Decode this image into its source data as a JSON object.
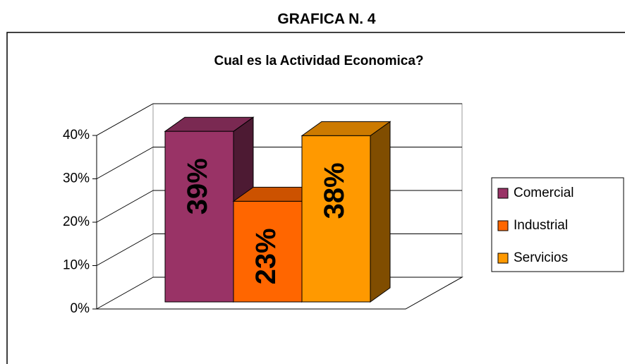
{
  "heading": "GRAFICA N. 4",
  "chart_data": {
    "type": "bar3d",
    "title": "Cual es la Actividad Economica?",
    "series": [
      {
        "name": "Comercial",
        "color": "#993366",
        "values": [
          39
        ],
        "value_labels": [
          "39%"
        ]
      },
      {
        "name": "Industrial",
        "color": "#ff6600",
        "values": [
          23
        ],
        "value_labels": [
          "23%"
        ]
      },
      {
        "name": "Servicios",
        "color": "#ff9900",
        "values": [
          38
        ],
        "value_labels": [
          "38%"
        ]
      }
    ],
    "ylim": [
      0,
      40
    ],
    "yticks": [
      {
        "value": 0,
        "label": "0%"
      },
      {
        "value": 10,
        "label": "10%"
      },
      {
        "value": 20,
        "label": "20%"
      },
      {
        "value": 30,
        "label": "30%"
      },
      {
        "value": 40,
        "label": "40%"
      }
    ],
    "grid": true,
    "legend": "right"
  }
}
